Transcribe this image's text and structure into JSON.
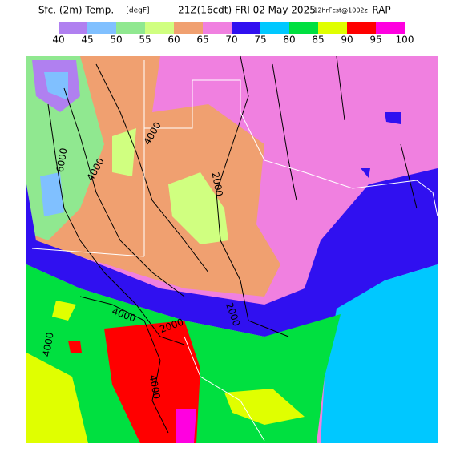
{
  "header": {
    "parts": [
      "Sfc. (2m) Temp.",
      "[degF]",
      "21Z(16cdt) FRI 02 May 2025",
      "12hrFcst@1002z",
      "RAP"
    ]
  },
  "colorbar": {
    "labels": [
      40,
      45,
      50,
      55,
      60,
      65,
      70,
      75,
      80,
      85,
      90,
      95,
      100
    ],
    "colors": [
      "#b080f0",
      "#80c0ff",
      "#90e890",
      "#d0ff80",
      "#f0a070",
      "#f080e0",
      "#3010f0",
      "#00c8ff",
      "#00e040",
      "#e0ff00",
      "#ff0000",
      "#ff00e0"
    ]
  },
  "contour_labels": [
    "6000",
    "4000",
    "4000",
    "2000",
    "2000",
    "4000",
    "2000",
    "4000",
    "4000"
  ]
}
